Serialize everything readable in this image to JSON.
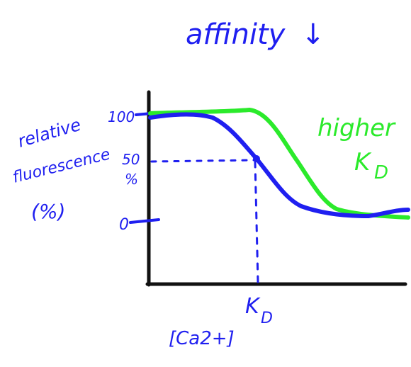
{
  "title": "affinity",
  "title_arrow": "↓",
  "ylabel_lines": [
    "relative",
    "fluorescence",
    "(%)"
  ],
  "y_ticks": {
    "top": "100",
    "mid": "50",
    "mid_unit": "%",
    "bottom": "0"
  },
  "x_marker": "K",
  "x_marker_sub": "D",
  "xlabel": "[Ca2+]",
  "curve_label_line1": "higher",
  "curve_label_line2": "K",
  "curve_label_sub": "D",
  "colors": {
    "blue": "#1f1ff0",
    "green": "#2bea2b",
    "axis": "#111111"
  }
}
